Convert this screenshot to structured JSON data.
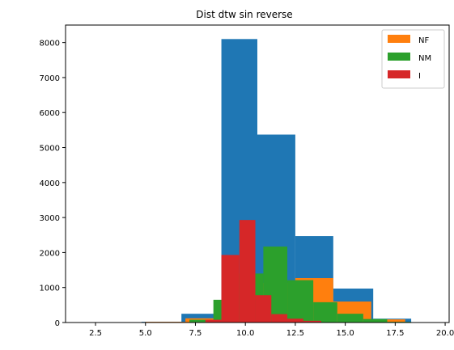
{
  "chart_data": {
    "type": "histogram",
    "title": "Dist dtw sin reverse",
    "xlabel": "",
    "ylabel": "",
    "xlim": [
      1.0,
      20.2
    ],
    "ylim": [
      0,
      8500
    ],
    "x_ticks": [
      2.5,
      5.0,
      7.5,
      10.0,
      12.5,
      15.0,
      17.5,
      20.0
    ],
    "x_tick_labels": [
      "2.5",
      "5.0",
      "7.5",
      "10.0",
      "12.5",
      "15.0",
      "17.5",
      "20.0"
    ],
    "y_ticks": [
      0,
      1000,
      2000,
      3000,
      4000,
      5000,
      6000,
      7000,
      8000
    ],
    "y_tick_labels": [
      "0",
      "1000",
      "2000",
      "3000",
      "4000",
      "5000",
      "6000",
      "7000",
      "8000"
    ],
    "legend_position": "top-right",
    "series": [
      {
        "name": "",
        "color": "#1f77b4",
        "bins": [
          {
            "x0": 1.0,
            "x1": 2.8,
            "value": 0
          },
          {
            "x0": 2.8,
            "x1": 4.8,
            "value": 0
          },
          {
            "x0": 4.8,
            "x1": 6.8,
            "value": 20
          },
          {
            "x0": 6.8,
            "x1": 8.8,
            "value": 250
          },
          {
            "x0": 8.8,
            "x1": 10.6,
            "value": 8100
          },
          {
            "x0": 10.6,
            "x1": 12.5,
            "value": 5370
          },
          {
            "x0": 12.5,
            "x1": 14.4,
            "value": 2470
          },
          {
            "x0": 14.4,
            "x1": 16.4,
            "value": 970
          },
          {
            "x0": 16.4,
            "x1": 18.3,
            "value": 110
          },
          {
            "x0": 18.3,
            "x1": 20.2,
            "value": 10
          }
        ]
      },
      {
        "name": "NF",
        "color": "#ff7f0e",
        "bins": [
          {
            "x0": 5.0,
            "x1": 7.0,
            "value": 20
          },
          {
            "x0": 7.0,
            "x1": 8.9,
            "value": 120
          },
          {
            "x0": 8.9,
            "x1": 10.7,
            "value": 940
          },
          {
            "x0": 10.7,
            "x1": 12.5,
            "value": 1130
          },
          {
            "x0": 12.5,
            "x1": 14.4,
            "value": 1270
          },
          {
            "x0": 14.4,
            "x1": 16.3,
            "value": 600
          },
          {
            "x0": 16.3,
            "x1": 18.0,
            "value": 90
          }
        ]
      },
      {
        "name": "NM",
        "color": "#2ca02c",
        "bins": [
          {
            "x0": 5.8,
            "x1": 7.2,
            "value": 10
          },
          {
            "x0": 7.2,
            "x1": 8.4,
            "value": 80
          },
          {
            "x0": 8.4,
            "x1": 9.6,
            "value": 650
          },
          {
            "x0": 9.6,
            "x1": 10.9,
            "value": 1400
          },
          {
            "x0": 10.9,
            "x1": 12.1,
            "value": 2170
          },
          {
            "x0": 12.1,
            "x1": 13.4,
            "value": 1210
          },
          {
            "x0": 13.4,
            "x1": 14.6,
            "value": 580
          },
          {
            "x0": 14.6,
            "x1": 15.9,
            "value": 250
          },
          {
            "x0": 15.9,
            "x1": 17.1,
            "value": 100
          },
          {
            "x0": 17.1,
            "x1": 18.3,
            "value": 20
          }
        ]
      },
      {
        "name": "I",
        "color": "#d62728",
        "bins": [
          {
            "x0": 7.2,
            "x1": 8.0,
            "value": 10
          },
          {
            "x0": 8.0,
            "x1": 8.8,
            "value": 80
          },
          {
            "x0": 8.8,
            "x1": 9.7,
            "value": 1930
          },
          {
            "x0": 9.7,
            "x1": 10.5,
            "value": 2930
          },
          {
            "x0": 10.5,
            "x1": 11.3,
            "value": 780
          },
          {
            "x0": 11.3,
            "x1": 12.1,
            "value": 240
          },
          {
            "x0": 12.1,
            "x1": 12.9,
            "value": 110
          },
          {
            "x0": 12.9,
            "x1": 13.8,
            "value": 50
          }
        ]
      }
    ]
  }
}
